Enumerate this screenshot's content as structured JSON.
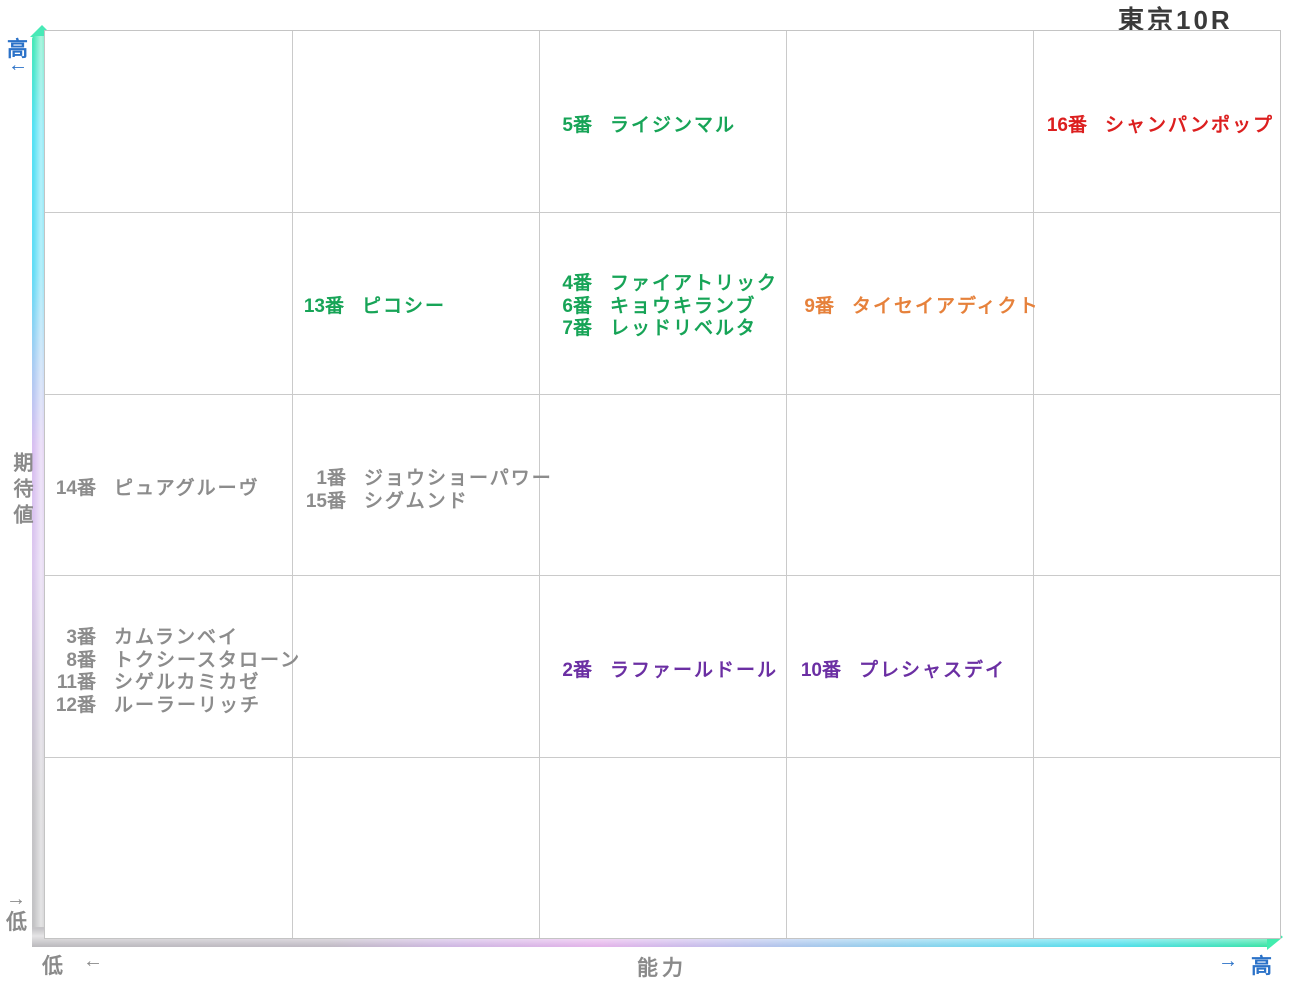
{
  "title": "東京10R",
  "axis": {
    "y_label": "期待値",
    "y_high_label": "高",
    "y_high_arrow": "←",
    "y_low_arrow": "→",
    "y_low_label": "低",
    "x_low_label": "低",
    "x_low_arrow": "←",
    "x_label": "能力",
    "x_high_arrow": "→",
    "x_high_label": "高"
  },
  "colors": {
    "green": "#17a457",
    "red": "#dc1f1f",
    "orange": "#e6813b",
    "purple": "#6b2fa3",
    "gray": "#8c8c8c",
    "axis_blue": "#2b72c8",
    "axis_gray": "#8a8a8a",
    "grid_line": "#cacaca",
    "title_text": "#3a3a3a"
  },
  "horses": {
    "r1c3": {
      "entries": [
        {
          "label": "5番",
          "name": "ライジンマル"
        }
      ]
    },
    "r1c5": {
      "entries": [
        {
          "label": "16番",
          "name": "シャンパンポップ"
        }
      ]
    },
    "r2c2": {
      "entries": [
        {
          "label": "13番",
          "name": "ピコシー"
        }
      ]
    },
    "r2c3": {
      "entries": [
        {
          "label": "4番",
          "name": "ファイアトリック"
        },
        {
          "label": "6番",
          "name": "キョウキランブ"
        },
        {
          "label": "7番",
          "name": "レッドリベルタ"
        }
      ]
    },
    "r2c4": {
      "entries": [
        {
          "label": "9番",
          "name": "タイセイアディクト"
        }
      ]
    },
    "r3c1": {
      "entries": [
        {
          "label": "14番",
          "name": "ピュアグルーヴ"
        }
      ]
    },
    "r3c2": {
      "entries": [
        {
          "label": "1番",
          "name": "ジョウショーパワー"
        },
        {
          "label": "15番",
          "name": "シグムンド"
        }
      ]
    },
    "r4c1": {
      "entries": [
        {
          "label": "3番",
          "name": "カムランベイ"
        },
        {
          "label": "8番",
          "name": "トクシースタローン"
        },
        {
          "label": "11番",
          "name": "シゲルカミカゼ"
        },
        {
          "label": "12番",
          "name": "ルーラーリッチ"
        }
      ]
    },
    "r4c3": {
      "entries": [
        {
          "label": "2番",
          "name": "ラファールドール"
        }
      ]
    },
    "r4c4": {
      "entries": [
        {
          "label": "10番",
          "name": "プレシャスデイ"
        }
      ]
    }
  },
  "chart_data": {
    "type": "scatter",
    "title": "東京10R",
    "xlabel": "能力",
    "ylabel": "期待値",
    "x_range_labels": {
      "low": "低",
      "high": "高"
    },
    "y_range_labels": {
      "low": "低",
      "high": "高"
    },
    "grid": {
      "columns": 5,
      "rows": 5,
      "row1_position": "top",
      "grid_on": true
    },
    "points": [
      {
        "number": 5,
        "name": "ライジンマル",
        "ability_col": 3,
        "expectation_row": 1,
        "color": "#17a457"
      },
      {
        "number": 16,
        "name": "シャンパンポップ",
        "ability_col": 5,
        "expectation_row": 1,
        "color": "#dc1f1f"
      },
      {
        "number": 13,
        "name": "ピコシー",
        "ability_col": 2,
        "expectation_row": 2,
        "color": "#17a457"
      },
      {
        "number": 4,
        "name": "ファイアトリック",
        "ability_col": 3,
        "expectation_row": 2,
        "color": "#17a457"
      },
      {
        "number": 6,
        "name": "キョウキランブ",
        "ability_col": 3,
        "expectation_row": 2,
        "color": "#17a457"
      },
      {
        "number": 7,
        "name": "レッドリベルタ",
        "ability_col": 3,
        "expectation_row": 2,
        "color": "#17a457"
      },
      {
        "number": 9,
        "name": "タイセイアディクト",
        "ability_col": 4,
        "expectation_row": 2,
        "color": "#e6813b"
      },
      {
        "number": 14,
        "name": "ピュアグルーヴ",
        "ability_col": 1,
        "expectation_row": 3,
        "color": "#8c8c8c"
      },
      {
        "number": 1,
        "name": "ジョウショーパワー",
        "ability_col": 2,
        "expectation_row": 3,
        "color": "#8c8c8c"
      },
      {
        "number": 15,
        "name": "シグムンド",
        "ability_col": 2,
        "expectation_row": 3,
        "color": "#8c8c8c"
      },
      {
        "number": 3,
        "name": "カムランベイ",
        "ability_col": 1,
        "expectation_row": 4,
        "color": "#8c8c8c"
      },
      {
        "number": 8,
        "name": "トクシースタローン",
        "ability_col": 1,
        "expectation_row": 4,
        "color": "#8c8c8c"
      },
      {
        "number": 11,
        "name": "シゲルカミカゼ",
        "ability_col": 1,
        "expectation_row": 4,
        "color": "#8c8c8c"
      },
      {
        "number": 12,
        "name": "ルーラーリッチ",
        "ability_col": 1,
        "expectation_row": 4,
        "color": "#8c8c8c"
      },
      {
        "number": 2,
        "name": "ラファールドール",
        "ability_col": 3,
        "expectation_row": 4,
        "color": "#6b2fa3"
      },
      {
        "number": 10,
        "name": "プレシャスデイ",
        "ability_col": 4,
        "expectation_row": 4,
        "color": "#6b2fa3"
      }
    ]
  }
}
